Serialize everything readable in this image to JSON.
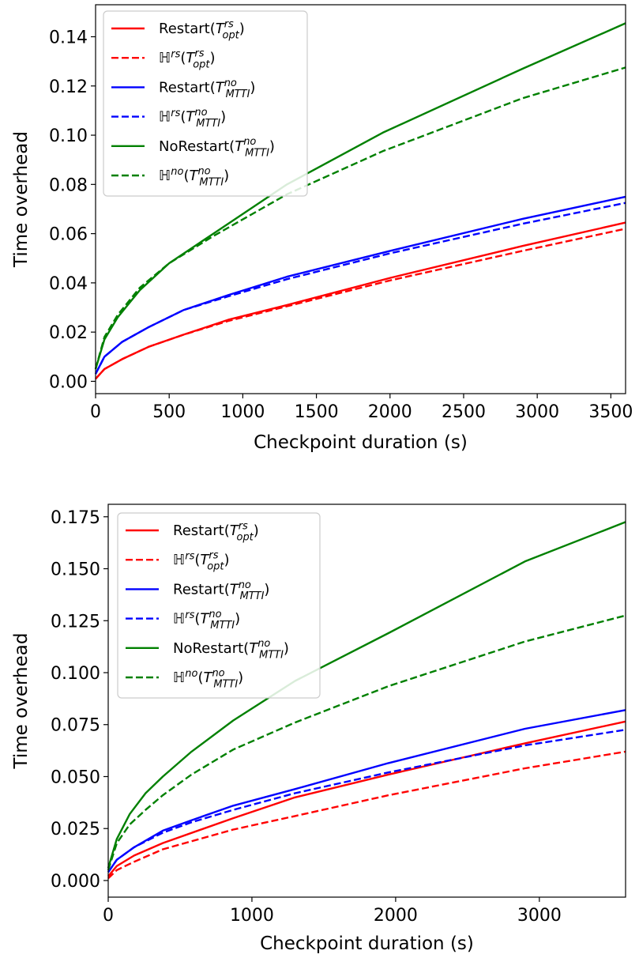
{
  "legend_entries": [
    {
      "key": "restart_opt",
      "base": "Restart(",
      "T": "T",
      "sup": "rs",
      "sub": "opt",
      "tail": ")"
    },
    {
      "key": "h_rs_opt",
      "base": "ℍ",
      "basesup": "rs",
      "mid": "(",
      "T": "T",
      "sup": "rs",
      "sub": "opt",
      "tail": ")"
    },
    {
      "key": "restart_mttl",
      "base": "Restart(",
      "T": "T",
      "sup": "no",
      "sub": "MTTI",
      "tail": ")"
    },
    {
      "key": "h_rs_mttl",
      "base": "ℍ",
      "basesup": "rs",
      "mid": "(",
      "T": "T",
      "sup": "no",
      "sub": "MTTI",
      "tail": ")"
    },
    {
      "key": "norestart_mttl",
      "base": "NoRestart(",
      "T": "T",
      "sup": "no",
      "sub": "MTTI",
      "tail": ")"
    },
    {
      "key": "h_no_mttl",
      "base": "ℍ",
      "basesup": "no",
      "mid": "(",
      "T": "T",
      "sup": "no",
      "sub": "MTTI",
      "tail": ")"
    }
  ],
  "colors": {
    "red": "#ff0000",
    "blue": "#0000ff",
    "green": "#008000"
  },
  "chart_data": [
    {
      "type": "line",
      "xlabel": "Checkpoint duration (s)",
      "ylabel": "Time overhead",
      "xlim": [
        0,
        3600
      ],
      "ylim": [
        -0.005,
        0.153
      ],
      "xticks": [
        0,
        500,
        1000,
        1500,
        2000,
        2500,
        3000,
        3500
      ],
      "xtick_labels": [
        "0",
        "500",
        "1000",
        "1500",
        "2000",
        "2500",
        "3000",
        "3500"
      ],
      "yticks": [
        0.0,
        0.02,
        0.04,
        0.06,
        0.08,
        0.1,
        0.12,
        0.14
      ],
      "ytick_labels": [
        "0.00",
        "0.02",
        "0.04",
        "0.06",
        "0.08",
        "0.10",
        "0.12",
        "0.14"
      ],
      "legend_position": "upper-left",
      "series": [
        {
          "key": "restart_opt",
          "color": "red",
          "dash": "solid",
          "x": [
            0,
            60,
            180,
            360,
            600,
            900,
            1300,
            2000,
            2900,
            3600
          ],
          "y": [
            0.001,
            0.005,
            0.009,
            0.014,
            0.019,
            0.025,
            0.031,
            0.042,
            0.055,
            0.0645
          ]
        },
        {
          "key": "h_rs_opt",
          "color": "red",
          "dash": "dashed",
          "x": [
            0,
            60,
            180,
            360,
            600,
            900,
            1300,
            2000,
            2900,
            3600
          ],
          "y": [
            0.001,
            0.005,
            0.009,
            0.014,
            0.019,
            0.0245,
            0.0305,
            0.041,
            0.053,
            0.062
          ]
        },
        {
          "key": "restart_mttl",
          "color": "blue",
          "dash": "solid",
          "x": [
            0,
            60,
            180,
            360,
            600,
            900,
            1300,
            2000,
            2900,
            3600
          ],
          "y": [
            0.003,
            0.01,
            0.016,
            0.022,
            0.029,
            0.035,
            0.0425,
            0.053,
            0.066,
            0.075
          ]
        },
        {
          "key": "h_rs_mttl",
          "color": "blue",
          "dash": "dashed",
          "x": [
            0,
            60,
            180,
            360,
            600,
            900,
            1300,
            2000,
            2900,
            3600
          ],
          "y": [
            0.003,
            0.01,
            0.016,
            0.022,
            0.029,
            0.0345,
            0.0415,
            0.052,
            0.064,
            0.0725
          ]
        },
        {
          "key": "norestart_mttl",
          "color": "green",
          "dash": "solid",
          "x": [
            0,
            60,
            150,
            300,
            500,
            800,
            1300,
            1950,
            2900,
            3600
          ],
          "y": [
            0.005,
            0.017,
            0.026,
            0.037,
            0.048,
            0.06,
            0.08,
            0.101,
            0.127,
            0.1455
          ]
        },
        {
          "key": "h_no_mttl",
          "color": "green",
          "dash": "dashed",
          "x": [
            0,
            60,
            150,
            300,
            500,
            800,
            1300,
            1950,
            2900,
            3600
          ],
          "y": [
            0.005,
            0.018,
            0.027,
            0.038,
            0.048,
            0.059,
            0.076,
            0.0935,
            0.115,
            0.1275
          ]
        }
      ]
    },
    {
      "type": "line",
      "xlabel": "Checkpoint duration (s)",
      "ylabel": "Time overhead",
      "xlim": [
        0,
        3600
      ],
      "ylim": [
        -0.008,
        0.181
      ],
      "xticks": [
        0,
        1000,
        2000,
        3000
      ],
      "xtick_labels": [
        "0",
        "1000",
        "2000",
        "3000"
      ],
      "yticks": [
        0.0,
        0.025,
        0.05,
        0.075,
        0.1,
        0.125,
        0.15,
        0.175
      ],
      "ytick_labels": [
        "0.000",
        "0.025",
        "0.050",
        "0.075",
        "0.100",
        "0.125",
        "0.150",
        "0.175"
      ],
      "legend_position": "upper-left",
      "series": [
        {
          "key": "restart_opt",
          "color": "red",
          "dash": "solid",
          "x": [
            0,
            60,
            180,
            380,
            870,
            1300,
            1950,
            2900,
            3600
          ],
          "y": [
            0.002,
            0.007,
            0.012,
            0.018,
            0.03,
            0.04,
            0.051,
            0.066,
            0.0765
          ]
        },
        {
          "key": "h_rs_opt",
          "color": "red",
          "dash": "dashed",
          "x": [
            0,
            60,
            180,
            380,
            870,
            1300,
            1950,
            2900,
            3600
          ],
          "y": [
            0.001,
            0.005,
            0.009,
            0.015,
            0.0245,
            0.031,
            0.041,
            0.054,
            0.062
          ]
        },
        {
          "key": "restart_mttl",
          "color": "blue",
          "dash": "solid",
          "x": [
            0,
            60,
            180,
            380,
            580,
            870,
            1300,
            1950,
            2900,
            3600
          ],
          "y": [
            0.004,
            0.01,
            0.016,
            0.024,
            0.029,
            0.036,
            0.044,
            0.0565,
            0.073,
            0.082
          ]
        },
        {
          "key": "h_rs_mttl",
          "color": "blue",
          "dash": "dashed",
          "x": [
            0,
            60,
            180,
            380,
            580,
            870,
            1300,
            1950,
            2900,
            3600
          ],
          "y": [
            0.004,
            0.01,
            0.016,
            0.023,
            0.028,
            0.034,
            0.042,
            0.052,
            0.065,
            0.0725
          ]
        },
        {
          "key": "norestart_mttl",
          "color": "green",
          "dash": "solid",
          "x": [
            0,
            60,
            150,
            260,
            380,
            580,
            870,
            1300,
            1950,
            2900,
            3600
          ],
          "y": [
            0.006,
            0.02,
            0.032,
            0.042,
            0.05,
            0.062,
            0.077,
            0.096,
            0.119,
            0.1535,
            0.1725
          ]
        },
        {
          "key": "h_no_mttl",
          "color": "green",
          "dash": "dashed",
          "x": [
            0,
            60,
            150,
            260,
            380,
            580,
            870,
            1300,
            1950,
            2900,
            3600
          ],
          "y": [
            0.005,
            0.018,
            0.027,
            0.034,
            0.041,
            0.051,
            0.063,
            0.076,
            0.0935,
            0.115,
            0.1275
          ]
        }
      ]
    }
  ]
}
